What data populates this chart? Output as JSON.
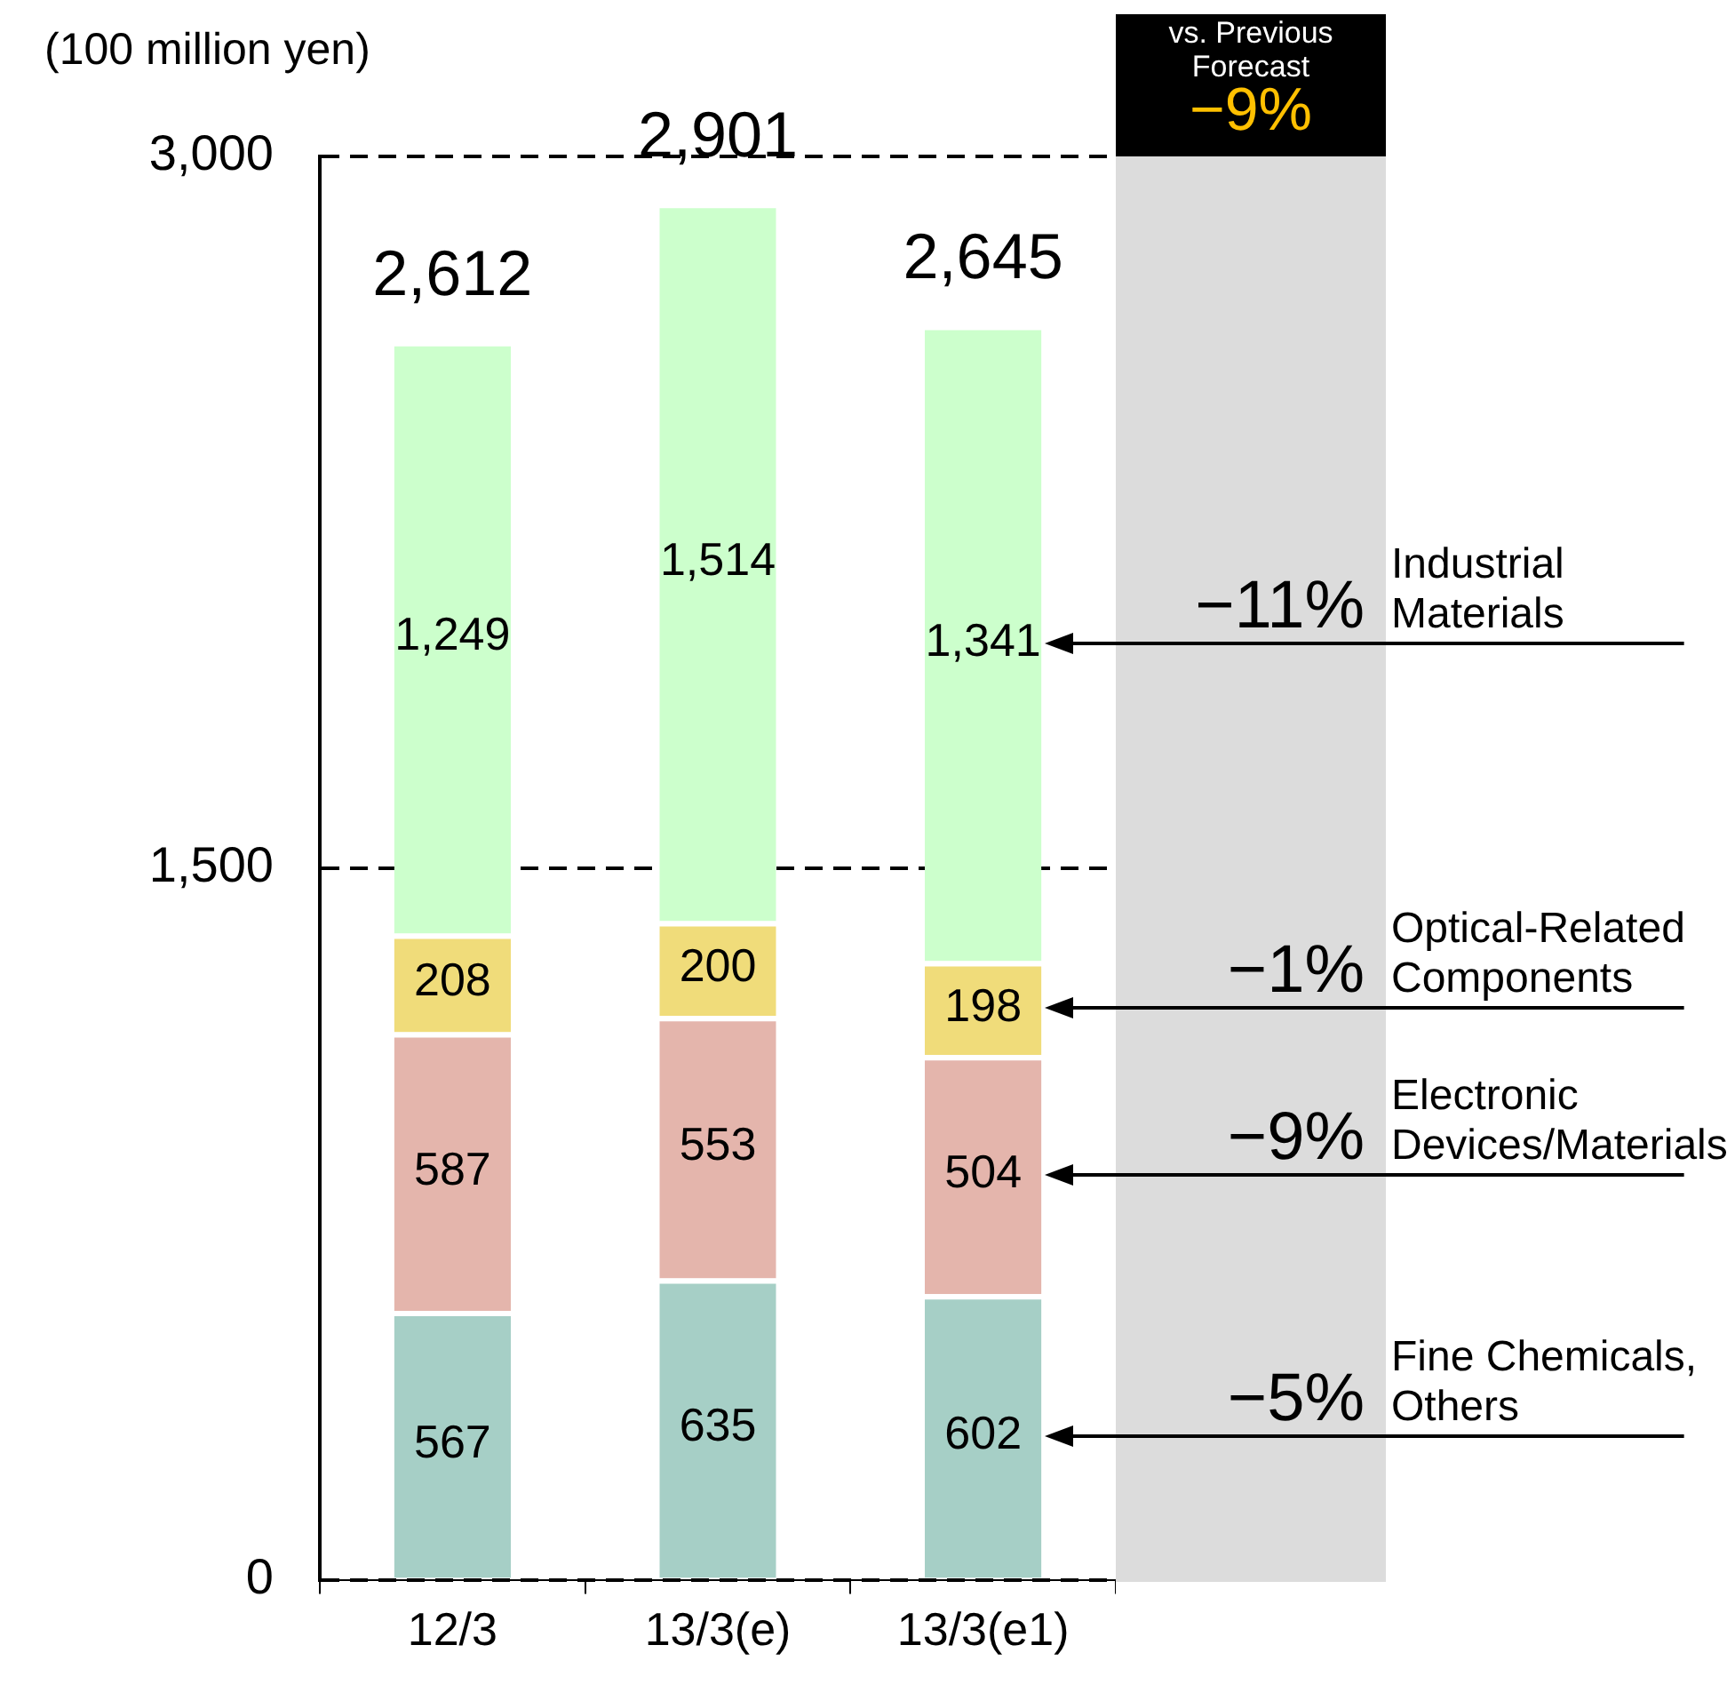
{
  "chart_data": {
    "type": "bar",
    "stacked": true,
    "ylabel": "(100 million yen)",
    "categories": [
      "12/3",
      "13/3(e)",
      "13/3(e1)"
    ],
    "series": [
      {
        "name": "Fine Chemicals, Others",
        "color": "#a6cfc6",
        "values": [
          567,
          635,
          602
        ],
        "value_labels": [
          "567",
          "635",
          "602"
        ]
      },
      {
        "name": "Electronic Devices/Materials",
        "color": "#e4b5ac",
        "values": [
          587,
          553,
          504
        ],
        "value_labels": [
          "587",
          "553",
          "504"
        ]
      },
      {
        "name": "Optical-Related Components",
        "color": "#f0dc7a",
        "values": [
          208,
          200,
          198
        ],
        "value_labels": [
          "208",
          "200",
          "198"
        ]
      },
      {
        "name": "Industrial Materials",
        "color": "#ccffcc",
        "values": [
          1249,
          1514,
          1341
        ],
        "value_labels": [
          "1,249",
          "1,514",
          "1,341"
        ]
      }
    ],
    "totals": [
      "2,612",
      "2,901",
      "2,645"
    ],
    "ylim": [
      0,
      3000
    ],
    "yticks": [
      0,
      {
        "value": 1500,
        "label": "1,500"
      },
      {
        "value": 3000,
        "label": "3,000"
      }
    ],
    "annotations": [
      "vs. Previous Forecast",
      "−9%",
      "−5%",
      "−9%",
      "−1%",
      "−11%"
    ],
    "legend": false,
    "grid": "y"
  }
}
